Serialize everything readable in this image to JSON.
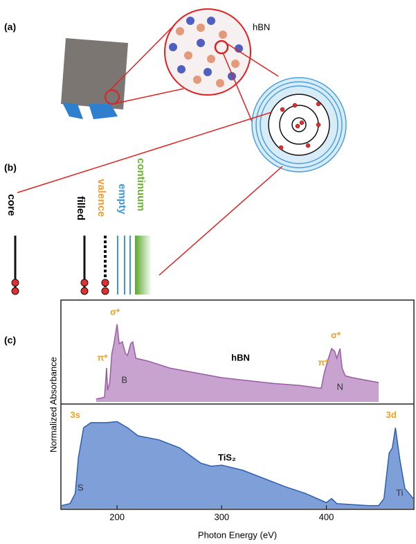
{
  "panel_labels": [
    "(a)",
    "(b)",
    "(c)"
  ],
  "illustration": {
    "material": "hBN"
  },
  "levels": [
    "core",
    "filled",
    "valence",
    "empty",
    "continuum"
  ],
  "chart_data": [
    {
      "type": "area",
      "title": "hBN",
      "y_label": "Normalized Absorbance",
      "color": "#c9a3cf",
      "line_color": "#9a5aa6",
      "xlim": [
        147,
        483
      ],
      "ylim": [
        0,
        1
      ],
      "x": [
        180,
        185,
        188,
        190,
        191,
        193,
        195,
        197,
        200,
        202,
        205,
        208,
        210,
        213,
        215,
        218,
        222,
        230,
        250,
        275,
        300,
        325,
        350,
        375,
        395,
        398,
        402,
        405,
        408,
        410,
        413,
        415,
        418,
        425,
        440,
        450
      ],
      "values": [
        0.03,
        0.04,
        0.05,
        0.35,
        0.12,
        0.2,
        0.5,
        0.6,
        0.8,
        0.6,
        0.62,
        0.5,
        0.48,
        0.6,
        0.62,
        0.45,
        0.44,
        0.42,
        0.35,
        0.3,
        0.25,
        0.22,
        0.19,
        0.17,
        0.14,
        0.3,
        0.45,
        0.55,
        0.52,
        0.45,
        0.55,
        0.35,
        0.27,
        0.25,
        0.22,
        0.2
      ],
      "annotations": [
        "π*",
        "σ*",
        "B",
        "π*",
        "σ*",
        "N"
      ]
    },
    {
      "type": "area",
      "title": "TiS₂",
      "x_label": "Photon Energy (eV)",
      "color": "#7f9fd8",
      "line_color": "#2d5eb0",
      "xlim": [
        147,
        483
      ],
      "ylim": [
        0,
        1
      ],
      "xticks": [
        200,
        300,
        400
      ],
      "x": [
        147,
        155,
        160,
        163,
        168,
        175,
        190,
        200,
        210,
        220,
        240,
        260,
        280,
        290,
        300,
        320,
        340,
        360,
        380,
        400,
        405,
        410,
        440,
        450,
        455,
        460,
        463,
        466,
        470,
        475,
        483
      ],
      "values": [
        0.03,
        0.05,
        0.15,
        0.5,
        0.8,
        0.85,
        0.85,
        0.86,
        0.8,
        0.72,
        0.68,
        0.6,
        0.45,
        0.42,
        0.43,
        0.38,
        0.3,
        0.22,
        0.15,
        0.06,
        0.1,
        0.05,
        0.03,
        0.03,
        0.1,
        0.55,
        0.6,
        0.8,
        0.5,
        0.2,
        0.1
      ],
      "annotations": [
        "3s",
        "S",
        "3d",
        "Ti"
      ]
    }
  ]
}
